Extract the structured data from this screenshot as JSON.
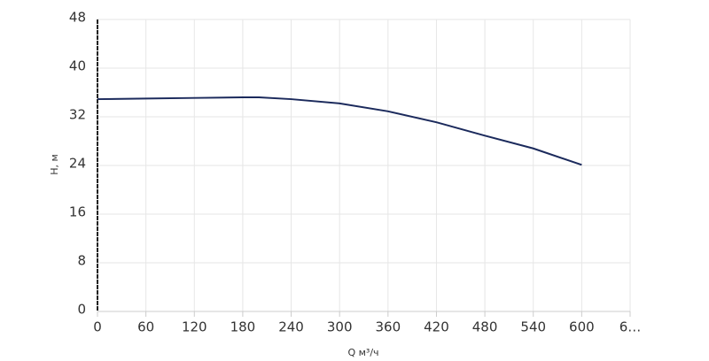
{
  "chart_data": {
    "type": "line",
    "x_label": "Q м³/ч",
    "y_label": "H, м",
    "x": [
      0,
      60,
      120,
      180,
      200,
      240,
      300,
      360,
      420,
      480,
      540,
      600
    ],
    "series": [
      {
        "name": "H",
        "color": "#1b2a5c",
        "values": [
          34.9,
          35.0,
          35.1,
          35.2,
          35.2,
          34.9,
          34.2,
          32.9,
          31.1,
          28.9,
          26.8,
          24.1
        ]
      }
    ],
    "xlim": [
      0,
      660
    ],
    "xticks": [
      0,
      60,
      120,
      180,
      240,
      300,
      360,
      420,
      480,
      540,
      600,
      {
        "value": 660,
        "label": "6…"
      }
    ],
    "ylim": [
      0,
      48
    ],
    "yticks": [
      0,
      8,
      16,
      24,
      32,
      40,
      48
    ],
    "grid": true
  }
}
